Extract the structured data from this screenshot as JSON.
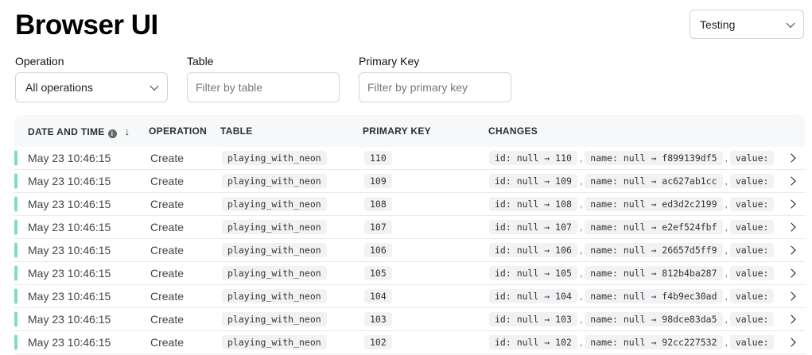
{
  "title": "Browser UI",
  "environment_select": {
    "value": "Testing"
  },
  "filters": {
    "operation": {
      "label": "Operation",
      "value": "All operations"
    },
    "table": {
      "label": "Table",
      "placeholder": "Filter by table"
    },
    "primary_key": {
      "label": "Primary Key",
      "placeholder": "Filter by primary key"
    }
  },
  "columns": {
    "date": "DATE AND TIME",
    "sort_icon": "↓",
    "operation": "OPERATION",
    "table": "TABLE",
    "primary_key": "PRIMARY KEY",
    "changes": "CHANGES"
  },
  "accent_color": "#7fdfb6",
  "rows": [
    {
      "date": "May 23 10:46:15",
      "operation": "Create",
      "table": "playing_with_neon",
      "pk": "110",
      "c1": "id: null → 110",
      "c2": "name: null → f899139df5",
      "c3": "value:"
    },
    {
      "date": "May 23 10:46:15",
      "operation": "Create",
      "table": "playing_with_neon",
      "pk": "109",
      "c1": "id: null → 109",
      "c2": "name: null → ac627ab1cc",
      "c3": "value:"
    },
    {
      "date": "May 23 10:46:15",
      "operation": "Create",
      "table": "playing_with_neon",
      "pk": "108",
      "c1": "id: null → 108",
      "c2": "name: null → ed3d2c2199",
      "c3": "value:"
    },
    {
      "date": "May 23 10:46:15",
      "operation": "Create",
      "table": "playing_with_neon",
      "pk": "107",
      "c1": "id: null → 107",
      "c2": "name: null → e2ef524fbf",
      "c3": "value:"
    },
    {
      "date": "May 23 10:46:15",
      "operation": "Create",
      "table": "playing_with_neon",
      "pk": "106",
      "c1": "id: null → 106",
      "c2": "name: null → 26657d5ff9",
      "c3": "value:"
    },
    {
      "date": "May 23 10:46:15",
      "operation": "Create",
      "table": "playing_with_neon",
      "pk": "105",
      "c1": "id: null → 105",
      "c2": "name: null → 812b4ba287",
      "c3": "value:"
    },
    {
      "date": "May 23 10:46:15",
      "operation": "Create",
      "table": "playing_with_neon",
      "pk": "104",
      "c1": "id: null → 104",
      "c2": "name: null → f4b9ec30ad",
      "c3": "value:"
    },
    {
      "date": "May 23 10:46:15",
      "operation": "Create",
      "table": "playing_with_neon",
      "pk": "103",
      "c1": "id: null → 103",
      "c2": "name: null → 98dce83da5",
      "c3": "value:"
    },
    {
      "date": "May 23 10:46:15",
      "operation": "Create",
      "table": "playing_with_neon",
      "pk": "102",
      "c1": "id: null → 102",
      "c2": "name: null → 92cc227532",
      "c3": "value:"
    }
  ]
}
